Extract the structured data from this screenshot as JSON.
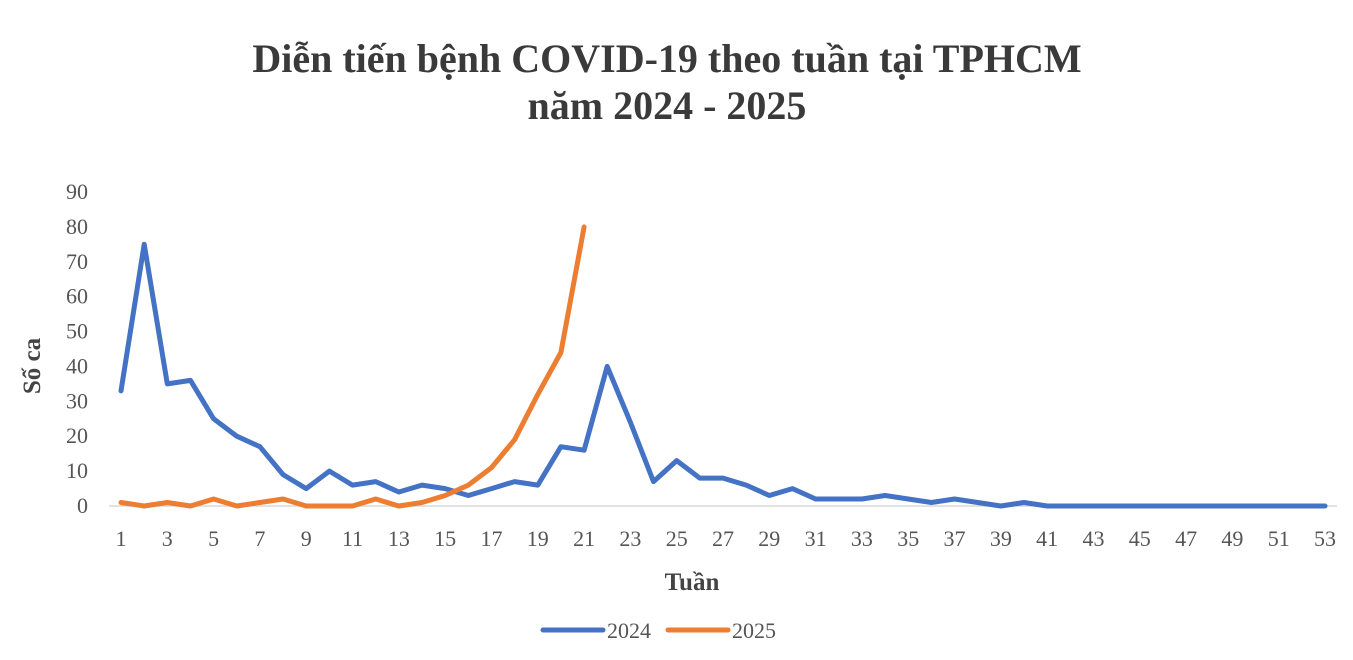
{
  "chart_data": {
    "type": "line",
    "title_line1": "Diễn tiến bệnh COVID-19 theo tuần tại TPHCM",
    "title_line2": "năm 2024 - 2025",
    "xlabel": "Tuần",
    "ylabel": "Số ca",
    "ylim": [
      0,
      90
    ],
    "yticks": [
      0,
      10,
      20,
      30,
      40,
      50,
      60,
      70,
      80,
      90
    ],
    "xlim": [
      1,
      53
    ],
    "xtick_labels": [
      1,
      3,
      5,
      7,
      9,
      11,
      13,
      15,
      17,
      19,
      21,
      23,
      25,
      27,
      29,
      31,
      33,
      35,
      37,
      39,
      41,
      43,
      45,
      47,
      49,
      51,
      53
    ],
    "grid": false,
    "legend_position": "bottom",
    "series": [
      {
        "name": "2024",
        "color": "#4472C4",
        "x": [
          1,
          2,
          3,
          4,
          5,
          6,
          7,
          8,
          9,
          10,
          11,
          12,
          13,
          14,
          15,
          16,
          17,
          18,
          19,
          20,
          21,
          22,
          23,
          24,
          25,
          26,
          27,
          28,
          29,
          30,
          31,
          32,
          33,
          34,
          35,
          36,
          37,
          38,
          39,
          40,
          41,
          42,
          43,
          44,
          45,
          46,
          47,
          48,
          49,
          50,
          51,
          52,
          53
        ],
        "values": [
          33,
          75,
          35,
          36,
          25,
          20,
          17,
          9,
          5,
          10,
          6,
          7,
          4,
          6,
          5,
          3,
          5,
          7,
          6,
          17,
          16,
          40,
          24,
          7,
          13,
          8,
          8,
          6,
          3,
          5,
          2,
          2,
          2,
          3,
          2,
          1,
          2,
          1,
          0,
          1,
          0,
          0,
          0,
          0,
          0,
          0,
          0,
          0,
          0,
          0,
          0,
          0,
          0
        ]
      },
      {
        "name": "2025",
        "color": "#ED7D31",
        "x": [
          1,
          2,
          3,
          4,
          5,
          6,
          7,
          8,
          9,
          10,
          11,
          12,
          13,
          14,
          15,
          16,
          17,
          18,
          19,
          20,
          21
        ],
        "values": [
          1,
          0,
          1,
          0,
          2,
          0,
          1,
          2,
          0,
          0,
          0,
          2,
          0,
          1,
          3,
          6,
          11,
          19,
          32,
          44,
          80
        ]
      }
    ]
  }
}
